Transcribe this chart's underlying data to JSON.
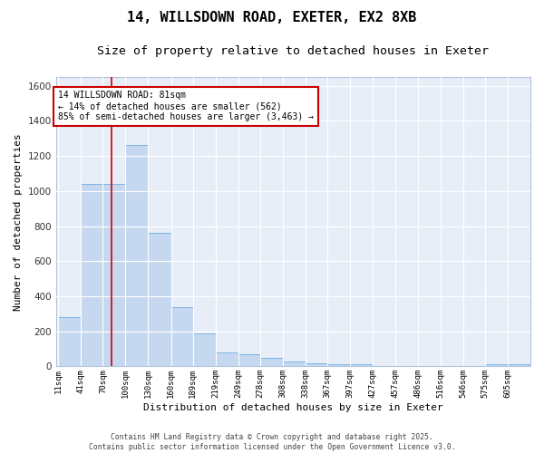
{
  "title1": "14, WILLSDOWN ROAD, EXETER, EX2 8XB",
  "title2": "Size of property relative to detached houses in Exeter",
  "xlabel": "Distribution of detached houses by size in Exeter",
  "ylabel": "Number of detached properties",
  "bin_labels": [
    "11sqm",
    "41sqm",
    "70sqm",
    "100sqm",
    "130sqm",
    "160sqm",
    "189sqm",
    "219sqm",
    "249sqm",
    "278sqm",
    "308sqm",
    "338sqm",
    "367sqm",
    "397sqm",
    "427sqm",
    "457sqm",
    "486sqm",
    "516sqm",
    "546sqm",
    "575sqm",
    "605sqm"
  ],
  "bin_edges": [
    11,
    41,
    70,
    100,
    130,
    160,
    189,
    219,
    249,
    278,
    308,
    338,
    367,
    397,
    427,
    457,
    486,
    516,
    546,
    575,
    605
  ],
  "bar_heights": [
    280,
    1040,
    1040,
    1260,
    760,
    340,
    190,
    80,
    70,
    50,
    30,
    20,
    15,
    15,
    0,
    0,
    0,
    0,
    0,
    15,
    15
  ],
  "bar_color": "#c5d8f0",
  "bar_edgecolor": "#6aaee0",
  "bg_color": "#e8eef8",
  "grid_color": "#ffffff",
  "fig_bg_color": "#ffffff",
  "property_size": 81,
  "redline_color": "#cc0000",
  "annotation_line1": "14 WILLSDOWN ROAD: 81sqm",
  "annotation_line2": "← 14% of detached houses are smaller (562)",
  "annotation_line3": "85% of semi-detached houses are larger (3,463) →",
  "annotation_box_color": "#cc0000",
  "ylim": [
    0,
    1650
  ],
  "yticks": [
    0,
    200,
    400,
    600,
    800,
    1000,
    1200,
    1400,
    1600
  ],
  "copyright_text": "Contains HM Land Registry data © Crown copyright and database right 2025.\nContains public sector information licensed under the Open Government Licence v3.0.",
  "title_fontsize": 11,
  "subtitle_fontsize": 9.5
}
